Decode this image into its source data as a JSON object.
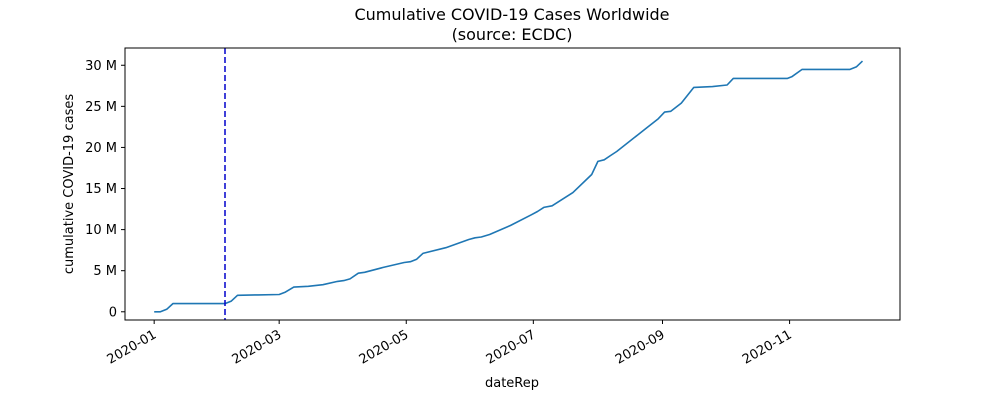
{
  "chart_data": {
    "type": "line",
    "title": "Cumulative COVID-19 Cases Worldwide",
    "subtitle": "(source: ECDC)",
    "xlabel": "dateRep",
    "ylabel": "cumulative COVID-19 cases",
    "xlim": [
      "2019-12-18",
      "2020-12-24"
    ],
    "ylim": [
      -1.0,
      32.1
    ],
    "y_unit": "M",
    "x_ticks": [
      {
        "date": "2020-01-01",
        "label": "2020-01"
      },
      {
        "date": "2020-03-01",
        "label": "2020-03"
      },
      {
        "date": "2020-05-01",
        "label": "2020-05"
      },
      {
        "date": "2020-07-01",
        "label": "2020-07"
      },
      {
        "date": "2020-09-01",
        "label": "2020-09"
      },
      {
        "date": "2020-11-01",
        "label": "2020-11"
      }
    ],
    "y_ticks": [
      {
        "value": 0,
        "label": "0"
      },
      {
        "value": 5,
        "label": "5 M"
      },
      {
        "value": 10,
        "label": "10 M"
      },
      {
        "value": 15,
        "label": "15 M"
      },
      {
        "value": 20,
        "label": "20 M"
      },
      {
        "value": 25,
        "label": "25 M"
      },
      {
        "value": 30,
        "label": "30 M"
      }
    ],
    "grid": false,
    "series": [
      {
        "color": "#1f77b4",
        "x": [
          "2020-01-01",
          "2020-01-04",
          "2020-01-07",
          "2020-01-10",
          "2020-01-20",
          "2020-02-01",
          "2020-02-04",
          "2020-02-07",
          "2020-02-10",
          "2020-02-20",
          "2020-03-01",
          "2020-03-04",
          "2020-03-08",
          "2020-03-15",
          "2020-03-22",
          "2020-03-29",
          "2020-04-01",
          "2020-04-04",
          "2020-04-08",
          "2020-04-11",
          "2020-04-20",
          "2020-04-30",
          "2020-05-03",
          "2020-05-06",
          "2020-05-09",
          "2020-05-20",
          "2020-05-31",
          "2020-06-03",
          "2020-06-06",
          "2020-06-10",
          "2020-06-20",
          "2020-06-30",
          "2020-07-03",
          "2020-07-06",
          "2020-07-10",
          "2020-07-20",
          "2020-07-29",
          "2020-08-01",
          "2020-08-04",
          "2020-08-07",
          "2020-08-10",
          "2020-08-20",
          "2020-08-30",
          "2020-09-02",
          "2020-09-05",
          "2020-09-10",
          "2020-09-16",
          "2020-09-25",
          "2020-10-02",
          "2020-10-05",
          "2020-10-15",
          "2020-10-31",
          "2020-11-02",
          "2020-11-07",
          "2020-11-20",
          "2020-11-30",
          "2020-12-03",
          "2020-12-06"
        ],
        "y": [
          0,
          0,
          0.3,
          1.0,
          1.0,
          1.0,
          1.0,
          1.3,
          2.0,
          2.05,
          2.1,
          2.4,
          3.0,
          3.1,
          3.3,
          3.7,
          3.8,
          4.0,
          4.7,
          4.8,
          5.4,
          6.0,
          6.1,
          6.4,
          7.1,
          7.8,
          8.8,
          9.0,
          9.1,
          9.4,
          10.5,
          11.8,
          12.2,
          12.7,
          12.9,
          14.5,
          16.7,
          18.3,
          18.5,
          19.0,
          19.5,
          21.5,
          23.5,
          24.3,
          24.4,
          25.4,
          27.3,
          27.4,
          27.6,
          28.4,
          28.4,
          28.4,
          28.6,
          29.5,
          29.5,
          29.5,
          29.8,
          30.5
        ]
      }
    ],
    "vline": {
      "x": "2020-02-04",
      "color": "#0000cc",
      "style": "dashed"
    }
  }
}
